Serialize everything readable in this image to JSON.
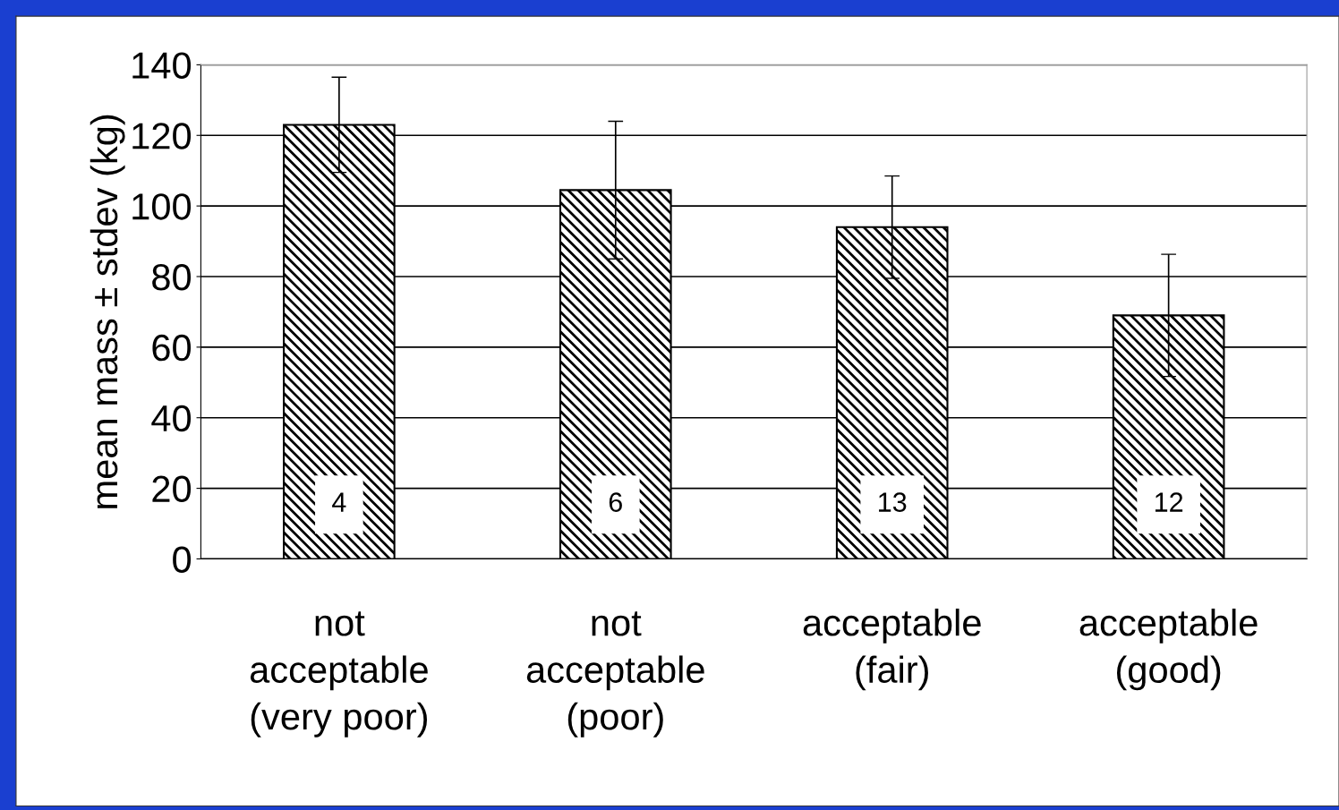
{
  "chart_data": {
    "type": "bar",
    "ylabel": "mean mass ± stdev (kg)",
    "categories": [
      "not\nacceptable\n(very poor)",
      "not\nacceptable\n(poor)",
      "acceptable\n(fair)",
      "acceptable\n(good)"
    ],
    "series": [
      {
        "color": "#000000",
        "values": [
          123,
          104.5,
          94,
          69
        ],
        "errors": [
          13.5,
          19.5,
          14.5,
          17.3
        ]
      }
    ],
    "ylim": [
      0,
      140
    ],
    "yticks": [
      0,
      20,
      40,
      60,
      80,
      100,
      120,
      140
    ],
    "grid": "y",
    "legend": false,
    "annotations": [
      "4",
      "6",
      "13",
      "12"
    ]
  }
}
